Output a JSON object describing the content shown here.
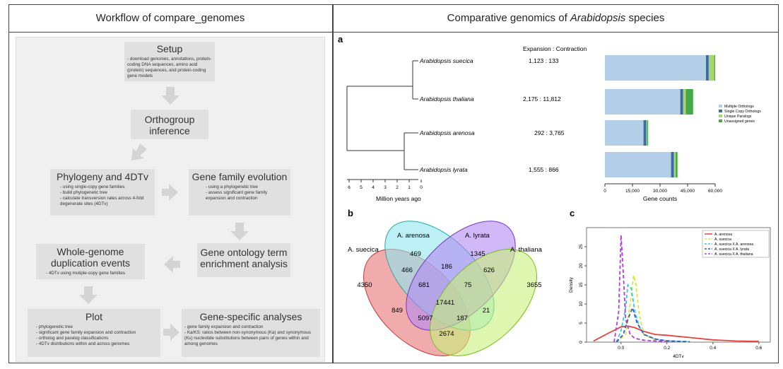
{
  "left_header": "Workflow of compare_genomes",
  "right_header_pre": "Comparative genomics of ",
  "right_header_em": "Arabidopsis",
  "right_header_post": " species",
  "workflow": {
    "setup": {
      "title": "Setup",
      "items": [
        "download genomes, annotations, protein-coding DNA sequences, amino acid (protein) sequences, and protein-coding gene models"
      ]
    },
    "orthogroup": {
      "title": "Orthogroup inference",
      "items": []
    },
    "phylogeny": {
      "title": "Phylogeny and 4DTv",
      "items": [
        "using single-copy gene families",
        "build phylogenetic tree",
        "calculate transversion rates across 4-fold degenerate sites (4DTv)"
      ]
    },
    "gene_family": {
      "title": "Gene family evolution",
      "items": [
        "using a phylogenetic tree",
        "assess significant gene family expansion and contraction"
      ]
    },
    "go": {
      "title": "Gene ontology term enrichment analysis",
      "items": []
    },
    "wgd": {
      "title": "Whole-genome duplication events",
      "items": [
        "4DTv using mutiple-copy gene families"
      ]
    },
    "plot": {
      "title": "Plot",
      "items": [
        "phylogenetic tree",
        "significant gene family expansion and contraction",
        "ortholog and paralog classifications",
        "4DTv distributions within and across genomes"
      ]
    },
    "gene_specific": {
      "title": "Gene-specific analyses",
      "items": [
        "gene family expansion and contraction",
        "Ka/KS: ratios between non-synonymous (Ka) and synonymous (Ks) nucleotide substitutions between pairs of genes within and among genomes"
      ]
    }
  },
  "panel_a": {
    "label": "a",
    "expansion_header": "Expansion : Contraction",
    "species": [
      "Arabidopsis suecica",
      "Arabidopsis thaliana",
      "Arabidopsis arenosa",
      "Arabidopsis lyrata"
    ],
    "ratios": [
      "1,123 : 133",
      "2,175 : 11,812",
      "292 : 3,765",
      "1,555 : 866"
    ],
    "tree_ticks": [
      "6",
      "5",
      "4",
      "3",
      "2",
      "1",
      "0"
    ],
    "tree_xlabel": "Million years ago"
  },
  "chart_data": [
    {
      "type": "bar",
      "orientation": "horizontal",
      "stacked": true,
      "categories": [
        "Arabidopsis suecica",
        "Arabidopsis thaliana",
        "Arabidopsis arenosa",
        "Arabidopsis lyrata"
      ],
      "series": [
        {
          "name": "Multiple Orthologs",
          "color": "#b3cfe8",
          "values": [
            55000,
            41000,
            21000,
            36000
          ]
        },
        {
          "name": "Single Copy Orthologs",
          "color": "#3a6ea5",
          "values": [
            1500,
            1500,
            1500,
            1500
          ]
        },
        {
          "name": "Unique Paralogs",
          "color": "#a6d96a",
          "values": [
            3000,
            1500,
            500,
            1000
          ]
        },
        {
          "name": "Unassigned genes",
          "color": "#4aa64a",
          "values": [
            500,
            4000,
            500,
            1000
          ]
        }
      ],
      "xlabel": "Gene counts",
      "xlim": [
        0,
        60000
      ],
      "xticks": [
        "0",
        "15,000",
        "30,000",
        "45,000",
        "60,000"
      ],
      "legend": "right"
    },
    {
      "type": "line",
      "title": "",
      "xlabel": "4DTv",
      "ylabel": "Density",
      "xlim": [
        -0.15,
        0.65
      ],
      "ylim": [
        0,
        30
      ],
      "xticks": [
        0.0,
        0.2,
        0.4,
        0.6
      ],
      "yticks": [
        0,
        5,
        10,
        15,
        20,
        25
      ],
      "legend": "top-right",
      "series": [
        {
          "name": "A. arenosa",
          "color": "#e8433c",
          "dash": "solid",
          "x": [
            -0.12,
            -0.05,
            0,
            0.03,
            0.06,
            0.1,
            0.15,
            0.2,
            0.3,
            0.4,
            0.5,
            0.6
          ],
          "y": [
            0.3,
            2.5,
            4,
            4.2,
            3.8,
            2.8,
            2,
            1.8,
            1.2,
            0.6,
            0.3,
            0.2
          ]
        },
        {
          "name": "A. suecica",
          "color": "#d7e83a",
          "dash": "dashed",
          "x": [
            -0.02,
            0.02,
            0.04,
            0.055,
            0.065,
            0.08,
            0.1,
            0.15,
            0.2,
            0.3
          ],
          "y": [
            0,
            2,
            10,
            17.5,
            15,
            7,
            2,
            0.5,
            0.3,
            0.1
          ]
        },
        {
          "name": "A. suecica X A. arenosa",
          "color": "#3ac8e0",
          "dash": "dashed",
          "x": [
            -0.02,
            0.0,
            0.02,
            0.03,
            0.045,
            0.06,
            0.08,
            0.1,
            0.15,
            0.2,
            0.3
          ],
          "y": [
            0,
            3,
            9,
            15,
            14,
            8,
            4,
            2,
            0.8,
            0.4,
            0.1
          ]
        },
        {
          "name": "A. suecica X A. lyrata",
          "color": "#3a5ab8",
          "dash": "dashed",
          "x": [
            -0.02,
            0.01,
            0.03,
            0.05,
            0.07,
            0.1,
            0.15,
            0.2,
            0.3
          ],
          "y": [
            0,
            2,
            6,
            9,
            5,
            2,
            0.8,
            0.3,
            0.1
          ]
        },
        {
          "name": "A. suecica X A. thaliana",
          "color": "#b53ae0",
          "dash": "dashed",
          "x": [
            -0.03,
            -0.01,
            0.0,
            0.01,
            0.02,
            0.04,
            0.06,
            0.1,
            0.2
          ],
          "y": [
            0,
            8,
            28,
            18,
            6,
            2,
            1,
            0.5,
            0.1
          ]
        }
      ]
    }
  ],
  "panel_b": {
    "label": "b",
    "sets": [
      "A. suecica",
      "A. arenosa",
      "A. lyrata",
      "A. thaliana"
    ],
    "regions": [
      "4350",
      "469",
      "1345",
      "3655",
      "466",
      "186",
      "626",
      "681",
      "75",
      "17441",
      "849",
      "21",
      "5097",
      "187",
      "2674"
    ]
  },
  "panel_c": {
    "label": "c"
  }
}
